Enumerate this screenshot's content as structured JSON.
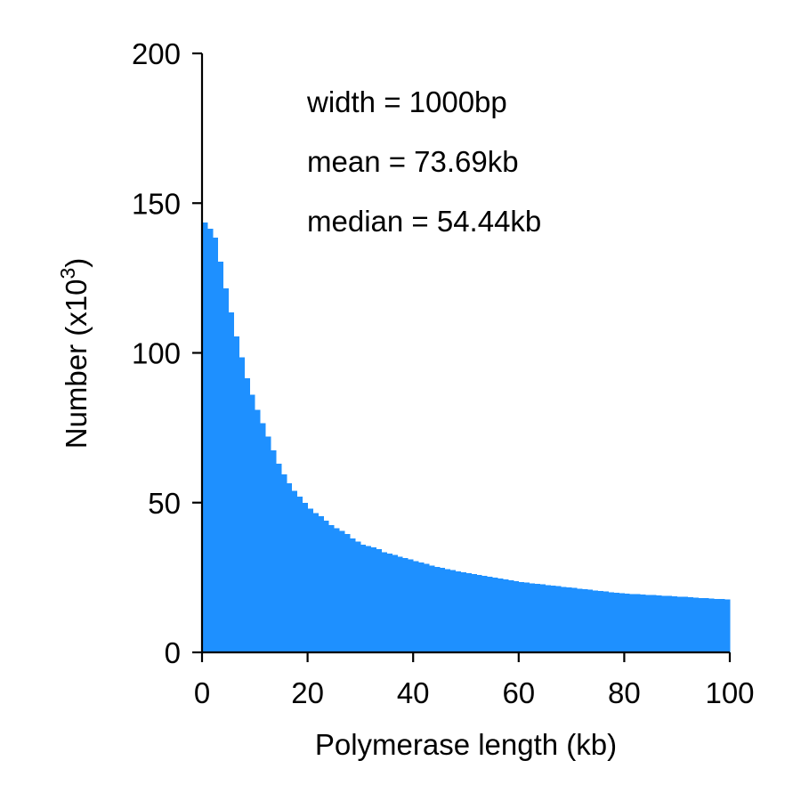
{
  "chart_data": {
    "type": "bar",
    "title": "",
    "xlabel": "Polymerase length (kb)",
    "ylabel": "Number (x10",
    "ylabel_sup": "3",
    "ylabel_close": ")",
    "xlim": [
      0,
      100
    ],
    "ylim": [
      0,
      200
    ],
    "x_ticks": [
      "0",
      "20",
      "40",
      "60",
      "80",
      "100"
    ],
    "y_ticks": [
      "0",
      "50",
      "100",
      "150",
      "200"
    ],
    "bin_width_kb": 1,
    "grid": false,
    "legend": "none",
    "bar_color": "#1E90FF",
    "annotations": [
      "width = 1000bp",
      "mean = 73.69kb",
      "median = 54.44kb"
    ],
    "values": [
      143.5,
      141.5,
      138.5,
      130.5,
      121.5,
      113.5,
      105.5,
      98.5,
      91.5,
      86,
      81,
      76.5,
      72,
      67.5,
      63,
      59.5,
      56.5,
      54,
      52,
      50,
      48,
      46.5,
      45.5,
      44,
      42.5,
      41.5,
      40.5,
      39.5,
      38,
      37,
      36,
      35.5,
      35,
      34.5,
      33.5,
      33,
      32.5,
      32,
      31.5,
      31,
      30.5,
      30,
      29.5,
      29,
      28.5,
      28.2,
      27.8,
      27.5,
      27,
      26.7,
      26.4,
      26.1,
      25.8,
      25.5,
      25.2,
      24.9,
      24.6,
      24.3,
      24,
      23.8,
      23.5,
      23.3,
      23.1,
      22.9,
      22.7,
      22.5,
      22.3,
      22.1,
      21.9,
      21.7,
      21.5,
      21.3,
      21.1,
      20.9,
      20.7,
      20.5,
      20.3,
      20.1,
      19.9,
      19.7,
      19.6,
      19.5,
      19.4,
      19.3,
      19.2,
      19.1,
      19,
      18.9,
      18.8,
      18.7,
      18.6,
      18.5,
      18.4,
      18.3,
      18.2,
      18.1,
      18,
      17.9,
      17.8,
      17.7
    ]
  }
}
